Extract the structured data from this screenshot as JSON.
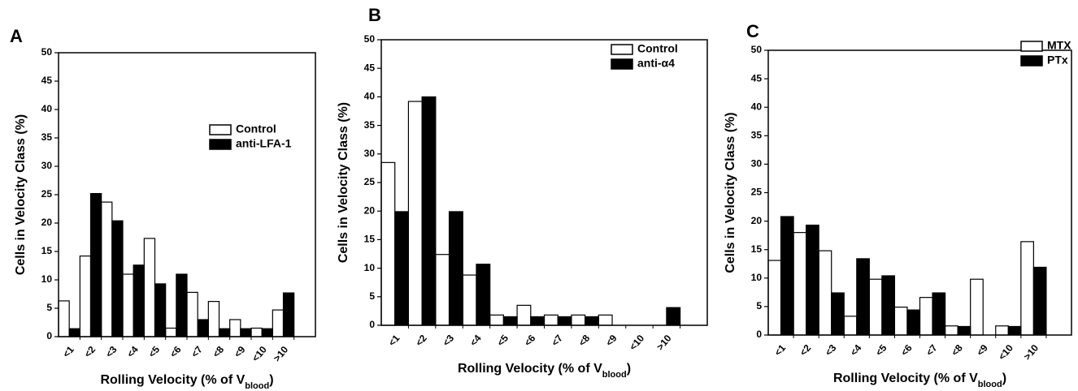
{
  "chart_data": [
    {
      "type": "bar",
      "panel": "A",
      "ylabel": "Cells in Velocity Class (%)",
      "xlabel": [
        "Rolling Velocity (% of V",
        "blood",
        ")"
      ],
      "categories": [
        "<1",
        "<2",
        "<3",
        "<4",
        "<5",
        "<6",
        "<7",
        "<8",
        "<9",
        "<10",
        ">10"
      ],
      "series": [
        {
          "name": "Control",
          "color": "#ffffff",
          "values": [
            6.3,
            14.2,
            23.7,
            11.0,
            17.3,
            1.5,
            7.8,
            6.2,
            3.0,
            1.5,
            4.7
          ]
        },
        {
          "name": "anti-LFA-1",
          "color": "#000000",
          "values": [
            1.4,
            25.2,
            20.4,
            12.6,
            9.3,
            11.0,
            3.0,
            1.4,
            1.4,
            1.4,
            7.7
          ]
        }
      ],
      "ylim": [
        0,
        50
      ],
      "yticks": [
        0,
        5,
        10,
        15,
        20,
        25,
        30,
        35,
        40,
        45,
        50
      ],
      "legend": "upper right"
    },
    {
      "type": "bar",
      "panel": "B",
      "ylabel": "Cells in Velocity Class (%)",
      "xlabel": [
        "Rolling Velocity  (% of V",
        "blood",
        ")"
      ],
      "categories": [
        "<1",
        "<2",
        "<3",
        "<4",
        "<5",
        "<6",
        "<7",
        "<8",
        "<9",
        "<10",
        ">10"
      ],
      "series": [
        {
          "name": "Control",
          "color": "#ffffff",
          "values": [
            28.5,
            39.2,
            12.4,
            8.8,
            1.8,
            3.5,
            1.8,
            1.8,
            1.8,
            0,
            0
          ]
        },
        {
          "name": "anti-α4",
          "color": "#000000",
          "values": [
            19.9,
            40.0,
            19.9,
            10.7,
            1.5,
            1.5,
            1.5,
            1.5,
            0,
            0,
            3.1
          ]
        }
      ],
      "ylim": [
        0,
        50
      ],
      "yticks": [
        0,
        5,
        10,
        15,
        20,
        25,
        30,
        35,
        40,
        45,
        50
      ],
      "legend": "upper right"
    },
    {
      "type": "bar",
      "panel": "C",
      "ylabel": "Cells in Velocity Class (%)",
      "xlabel": [
        "Rolling Velocity (% of V",
        "blood",
        ")"
      ],
      "categories": [
        "<1",
        "<2",
        "<3",
        "<4",
        "<5",
        "<6",
        "<7",
        "<8",
        "<9",
        "<10",
        ">10"
      ],
      "series": [
        {
          "name": "MTX",
          "color": "#ffffff",
          "values": [
            13.1,
            18.0,
            14.8,
            3.3,
            9.8,
            4.9,
            6.6,
            1.6,
            9.8,
            1.6,
            16.4
          ]
        },
        {
          "name": "PTx",
          "color": "#000000",
          "values": [
            20.8,
            19.3,
            7.4,
            13.4,
            10.4,
            4.4,
            7.4,
            1.5,
            0,
            1.5,
            11.9
          ]
        }
      ],
      "ylim": [
        0,
        50
      ],
      "yticks": [
        0,
        5,
        10,
        15,
        20,
        25,
        30,
        35,
        40,
        45,
        50
      ],
      "legend": "upper right"
    }
  ]
}
